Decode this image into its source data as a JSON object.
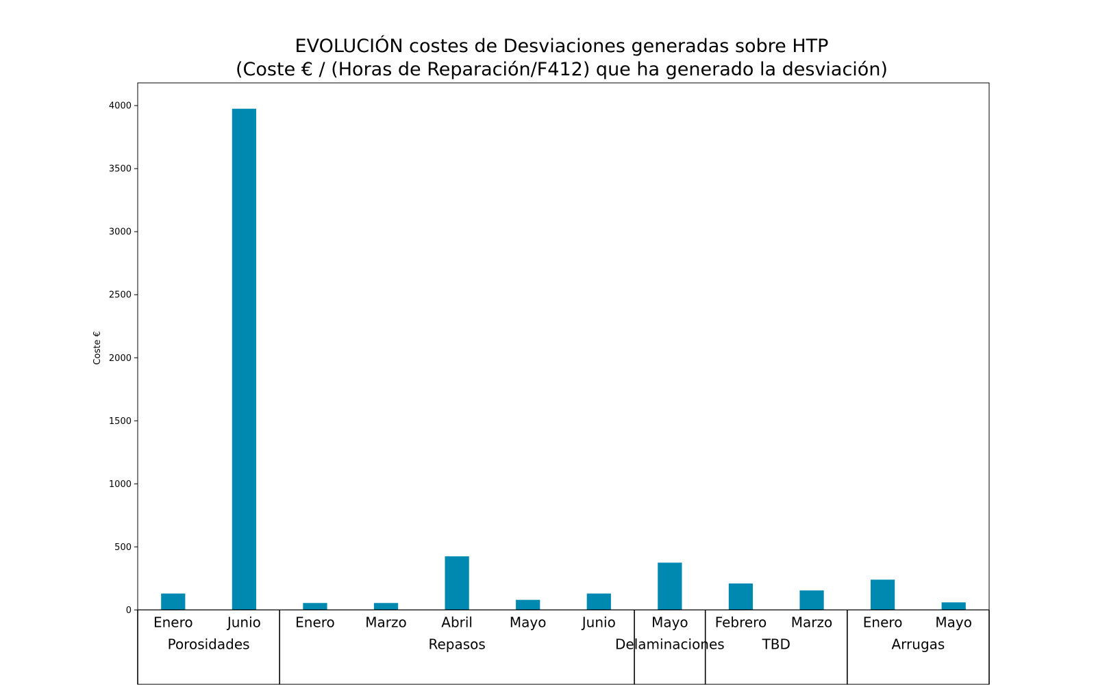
{
  "chart_data": {
    "type": "bar",
    "title": "EVOLUCIÓN costes de Desviaciones  generadas  sobre HTP",
    "subtitle": "(Coste € / (Horas de Reparación/F412) que ha generado la desviación)",
    "xlabel": "",
    "ylabel": "Coste €",
    "ylim": [
      -590,
      4180
    ],
    "yticks": [
      0,
      500,
      1000,
      1500,
      2000,
      2500,
      3000,
      3500,
      4000
    ],
    "grid": false,
    "bar_color": "#0089b0",
    "categories": [
      "Enero",
      "Junio",
      "Enero",
      "Marzo",
      "Abril",
      "Mayo",
      "Junio",
      "Mayo",
      "Febrero",
      "Marzo",
      "Enero",
      "Mayo"
    ],
    "values": [
      130,
      3975,
      55,
      55,
      425,
      80,
      130,
      375,
      210,
      155,
      240,
      60
    ],
    "groups": [
      {
        "label": "Porosidades",
        "count": 2
      },
      {
        "label": "Repasos",
        "count": 5
      },
      {
        "label": "Delaminaciones",
        "count": 1
      },
      {
        "label": "TBD",
        "count": 2
      },
      {
        "label": "Arrugas",
        "count": 2
      }
    ]
  }
}
